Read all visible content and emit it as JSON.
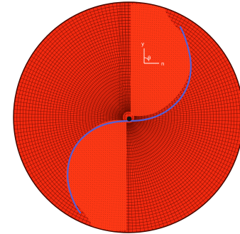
{
  "figure": {
    "axis_labels": {
      "y": "y",
      "x": "n",
      "angle": "θ"
    },
    "colors": {
      "mesh_fill": "#f22a10",
      "mesh_line": "#5a0a00",
      "highlight_fill": "#ff3a16",
      "blade_curve": "#5560d6",
      "center_dot": "#111111",
      "axis_marker": "#ffffff"
    }
  }
}
